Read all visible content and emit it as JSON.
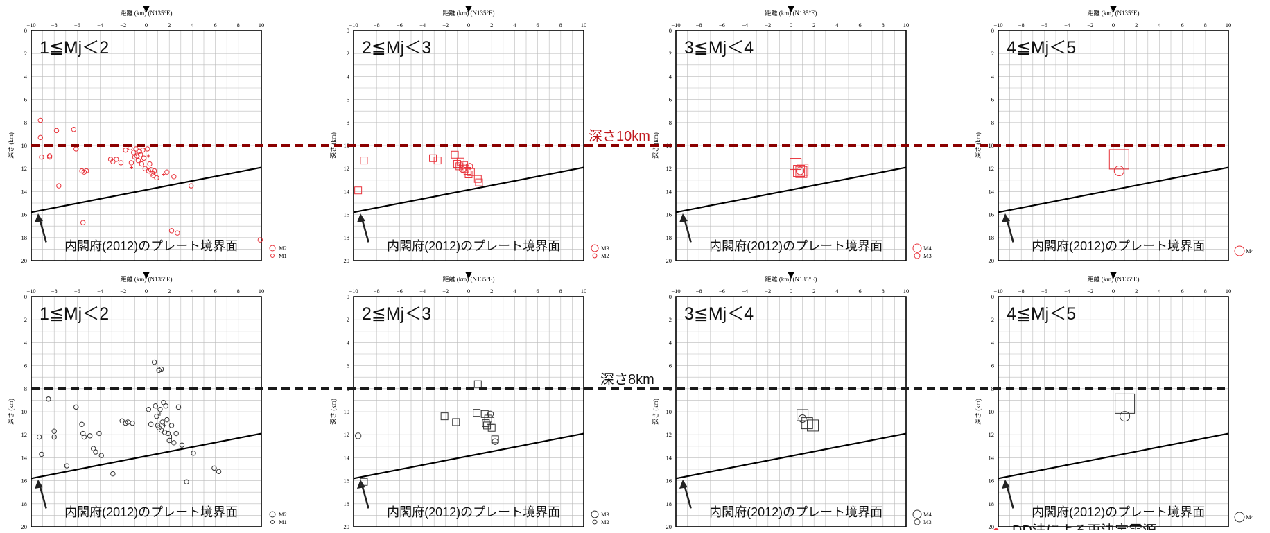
{
  "labels": {
    "xaxis_title": "距離 (km) (N135°E)",
    "yaxis_title": "深さ (km)",
    "plate_label": "内閣府(2012)のプレート境界面",
    "depth_line_red": "深さ10km",
    "depth_line_black": "深さ8km",
    "bottom_note": "DD法による再決定震源"
  },
  "colors": {
    "red_series": "#e8333b",
    "red_depth_line": "#8b0000",
    "black_series": "#333333",
    "black_depth_line": "#1a1a1a"
  },
  "axis": {
    "xlim": [
      -10,
      10
    ],
    "ylim": [
      0,
      20
    ],
    "xticks": [
      "−10",
      "−8",
      "−6",
      "−4",
      "−2",
      "0",
      "2",
      "4",
      "6",
      "8",
      "10"
    ],
    "yticks": [
      "0",
      "2",
      "4",
      "6",
      "8",
      "10",
      "12",
      "14",
      "16",
      "18",
      "20"
    ],
    "reference_marker": "▼"
  },
  "chart_data": [
    {
      "type": "scatter",
      "row": 1,
      "title": "1≦Mj＜2",
      "depth_line": 10,
      "legend": [
        "M2",
        "M1"
      ],
      "plate_boundary": [
        [
          -10,
          15.8
        ],
        [
          10,
          11.9
        ]
      ],
      "arrow": true,
      "series": [
        {
          "shape": "circle",
          "points": [
            [
              -9.2,
              7.8
            ],
            [
              -9.2,
              9.3
            ],
            [
              -9.1,
              11.0
            ],
            [
              -8.4,
              10.9
            ],
            [
              -8.4,
              11.0
            ],
            [
              -7.8,
              8.7
            ],
            [
              -7.6,
              13.5
            ],
            [
              -6.3,
              8.6
            ],
            [
              -6.1,
              10.3
            ],
            [
              -5.6,
              12.2
            ],
            [
              -5.4,
              12.3
            ],
            [
              -5.2,
              12.2
            ],
            [
              -5.5,
              16.7
            ],
            [
              -3.1,
              11.2
            ],
            [
              -2.9,
              11.4
            ],
            [
              -2.6,
              11.2
            ],
            [
              -2.2,
              11.5
            ],
            [
              -1.8,
              10.4
            ],
            [
              -1.4,
              10.2
            ],
            [
              -1.3,
              11.5
            ],
            [
              -1.0,
              11.0
            ],
            [
              -1.1,
              10.6
            ],
            [
              -0.9,
              10.3
            ],
            [
              -0.8,
              10.9
            ],
            [
              -0.7,
              11.3
            ],
            [
              -0.6,
              10.5
            ],
            [
              -0.5,
              10.8
            ],
            [
              -0.4,
              11.6
            ],
            [
              -0.3,
              10.4
            ],
            [
              -0.2,
              11.1
            ],
            [
              -0.1,
              12.0
            ],
            [
              0.1,
              10.3
            ],
            [
              0.2,
              12.2
            ],
            [
              0.3,
              11.6
            ],
            [
              0.4,
              12.1
            ],
            [
              0.5,
              12.4
            ],
            [
              0.6,
              12.6
            ],
            [
              0.7,
              12.2
            ],
            [
              0.9,
              12.8
            ],
            [
              1.8,
              12.3
            ],
            [
              2.2,
              17.4
            ],
            [
              2.4,
              12.7
            ],
            [
              2.7,
              17.6
            ],
            [
              3.9,
              13.5
            ],
            [
              9.9,
              18.2
            ]
          ]
        },
        {
          "shape": "plus",
          "points": [
            [
              -1.3,
              11.9
            ],
            [
              0.2,
              10.9
            ],
            [
              0.7,
              12.4
            ],
            [
              1.5,
              12.5
            ]
          ]
        }
      ]
    },
    {
      "type": "scatter",
      "row": 1,
      "title": "2≦Mj＜3",
      "depth_line": 10,
      "legend": [
        "M3",
        "M2"
      ],
      "plate_boundary": [
        [
          -10,
          15.8
        ],
        [
          10,
          11.9
        ]
      ],
      "arrow": true,
      "series": [
        {
          "shape": "square",
          "points": [
            [
              -9.6,
              13.9
            ],
            [
              -9.1,
              11.3
            ],
            [
              -3.1,
              11.1
            ],
            [
              -2.7,
              11.3
            ],
            [
              -1.2,
              10.8
            ],
            [
              -1.0,
              11.6
            ],
            [
              -0.8,
              11.8
            ],
            [
              -0.7,
              11.4
            ],
            [
              -0.5,
              11.9
            ],
            [
              -0.4,
              11.7
            ],
            [
              -0.3,
              12.0
            ],
            [
              -0.1,
              12.2
            ],
            [
              0.0,
              12.5
            ],
            [
              0.2,
              12.3
            ],
            [
              0.8,
              12.9
            ],
            [
              0.9,
              13.2
            ]
          ]
        },
        {
          "shape": "circle",
          "points": [
            [
              -0.5,
              12.1
            ],
            [
              0.1,
              11.8
            ]
          ]
        }
      ]
    },
    {
      "type": "scatter",
      "row": 1,
      "title": "3≦Mj＜4",
      "depth_line": 10,
      "legend": [
        "M4",
        "M3"
      ],
      "plate_boundary": [
        [
          -10,
          15.8
        ],
        [
          10,
          11.9
        ]
      ],
      "arrow": true,
      "series": [
        {
          "shape": "square",
          "points": [
            [
              0.4,
              11.6
            ],
            [
              0.7,
              12.2
            ],
            [
              0.9,
              12.3
            ],
            [
              1.0,
              12.1
            ]
          ]
        },
        {
          "shape": "circle",
          "points": [
            [
              0.8,
              12.2
            ]
          ]
        }
      ]
    },
    {
      "type": "scatter",
      "row": 1,
      "title": "4≦Mj＜5",
      "depth_line": 10,
      "legend": [
        "M4"
      ],
      "plate_boundary": [
        [
          -10,
          15.8
        ],
        [
          10,
          11.9
        ]
      ],
      "arrow": true,
      "series": [
        {
          "shape": "square",
          "points": [
            [
              0.5,
              11.2
            ]
          ]
        },
        {
          "shape": "circle",
          "points": [
            [
              0.5,
              12.2
            ]
          ]
        }
      ]
    },
    {
      "type": "scatter",
      "row": 2,
      "title": "1≦Mj＜2",
      "depth_line": 8,
      "legend": [
        "M2",
        "M1"
      ],
      "plate_boundary": [
        [
          -10,
          15.8
        ],
        [
          10,
          11.9
        ]
      ],
      "arrow": true,
      "series": [
        {
          "shape": "circle",
          "points": [
            [
              -9.3,
              12.2
            ],
            [
              -9.1,
              13.7
            ],
            [
              -8.5,
              8.9
            ],
            [
              -8.0,
              11.7
            ],
            [
              -8.0,
              12.2
            ],
            [
              -6.9,
              14.7
            ],
            [
              -6.1,
              9.6
            ],
            [
              -5.6,
              11.1
            ],
            [
              -5.5,
              11.9
            ],
            [
              -5.4,
              12.2
            ],
            [
              -4.9,
              12.1
            ],
            [
              -4.6,
              13.2
            ],
            [
              -4.4,
              13.5
            ],
            [
              -4.1,
              11.9
            ],
            [
              -3.9,
              13.8
            ],
            [
              -2.9,
              15.4
            ],
            [
              -2.1,
              10.8
            ],
            [
              -1.8,
              11.0
            ],
            [
              -1.6,
              10.9
            ],
            [
              -1.2,
              11.0
            ],
            [
              0.2,
              9.8
            ],
            [
              0.4,
              11.1
            ],
            [
              0.8,
              9.5
            ],
            [
              0.9,
              10.4
            ],
            [
              1.0,
              11.2
            ],
            [
              1.1,
              11.4
            ],
            [
              1.2,
              9.8
            ],
            [
              1.3,
              11.6
            ],
            [
              1.4,
              10.9
            ],
            [
              1.5,
              9.2
            ],
            [
              1.6,
              11.8
            ],
            [
              1.7,
              9.5
            ],
            [
              1.8,
              10.7
            ],
            [
              1.9,
              11.9
            ],
            [
              2.0,
              12.5
            ],
            [
              2.2,
              11.2
            ],
            [
              2.4,
              12.7
            ],
            [
              2.6,
              11.9
            ],
            [
              2.8,
              9.6
            ],
            [
              3.1,
              12.9
            ],
            [
              3.5,
              16.1
            ],
            [
              4.1,
              13.6
            ],
            [
              5.9,
              14.9
            ],
            [
              6.3,
              15.2
            ],
            [
              0.7,
              5.7
            ],
            [
              1.1,
              6.4
            ],
            [
              1.3,
              6.3
            ]
          ]
        },
        {
          "shape": "plus",
          "points": [
            [
              1.2,
              10.2
            ],
            [
              1.6,
              11.2
            ],
            [
              2.2,
              12.2
            ]
          ]
        }
      ]
    },
    {
      "type": "scatter",
      "row": 2,
      "title": "2≦Mj＜3",
      "depth_line": 8,
      "legend": [
        "M3",
        "M2"
      ],
      "plate_boundary": [
        [
          -10,
          15.8
        ],
        [
          10,
          11.9
        ]
      ],
      "arrow": true,
      "series": [
        {
          "shape": "square",
          "points": [
            [
              -9.1,
              16.1
            ],
            [
              -2.1,
              10.4
            ],
            [
              -1.1,
              10.9
            ],
            [
              0.8,
              7.6
            ],
            [
              0.7,
              10.1
            ],
            [
              1.4,
              10.2
            ],
            [
              1.5,
              11.0
            ],
            [
              1.6,
              11.2
            ],
            [
              1.7,
              10.6
            ],
            [
              1.9,
              10.8
            ],
            [
              2.0,
              11.4
            ],
            [
              2.3,
              12.4
            ]
          ]
        },
        {
          "shape": "circle",
          "points": [
            [
              -9.6,
              12.1
            ],
            [
              1.9,
              10.2
            ],
            [
              2.3,
              12.6
            ]
          ]
        }
      ]
    },
    {
      "type": "scatter",
      "row": 2,
      "title": "3≦Mj＜4",
      "depth_line": 8,
      "legend": [
        "M4",
        "M3"
      ],
      "plate_boundary": [
        [
          -10,
          15.8
        ],
        [
          10,
          11.9
        ]
      ],
      "arrow": true,
      "series": [
        {
          "shape": "square",
          "points": [
            [
              1.0,
              10.3
            ],
            [
              1.4,
              11.0
            ],
            [
              1.9,
              11.2
            ]
          ]
        },
        {
          "shape": "circle",
          "points": [
            [
              1.0,
              10.6
            ]
          ]
        }
      ]
    },
    {
      "type": "scatter",
      "row": 2,
      "title": "4≦Mj＜5",
      "depth_line": 8,
      "legend": [
        "M4"
      ],
      "plate_boundary": [
        [
          -10,
          15.8
        ],
        [
          10,
          11.9
        ]
      ],
      "arrow": true,
      "series": [
        {
          "shape": "square",
          "points": [
            [
              1.0,
              9.3
            ]
          ]
        },
        {
          "shape": "circle",
          "points": [
            [
              1.0,
              10.4
            ]
          ]
        }
      ]
    }
  ]
}
